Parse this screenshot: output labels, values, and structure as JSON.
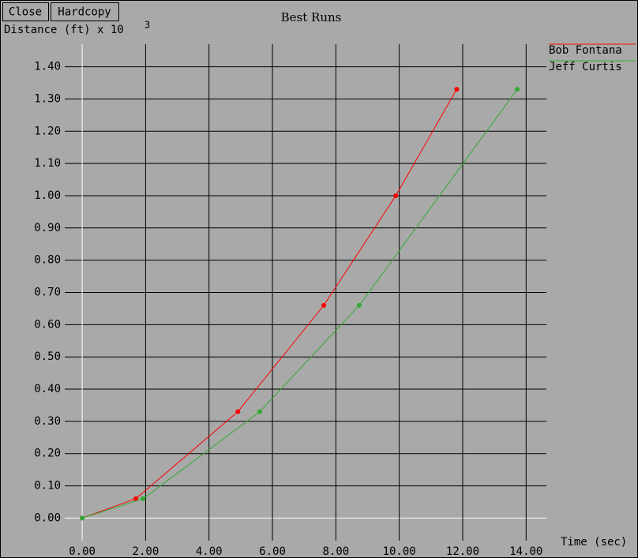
{
  "buttons": [
    "Close",
    "Hardcopy"
  ],
  "chart_data": {
    "type": "line",
    "title": "Best Runs",
    "ylabel": "Distance (ft) x 10",
    "ylabel_exponent": "3",
    "xlabel": "Time (sec)",
    "grid": true,
    "grid_color": "#000000",
    "axis_color": "#ffffff",
    "legend": "top-right",
    "xlim": [
      -0.55,
      14.64
    ],
    "ylim": [
      -0.07,
      1.47
    ],
    "xticks": [
      {
        "value": 0,
        "label": "0.00"
      },
      {
        "value": 2,
        "label": "2.00"
      },
      {
        "value": 4,
        "label": "4.00"
      },
      {
        "value": 6,
        "label": "6.00"
      },
      {
        "value": 8,
        "label": "8.00"
      },
      {
        "value": 10,
        "label": "10.00"
      },
      {
        "value": 12,
        "label": "12.00"
      },
      {
        "value": 14,
        "label": "14.00"
      }
    ],
    "yticks": [
      {
        "value": 0,
        "label": "0.00"
      },
      {
        "value": 0.1,
        "label": "0.10"
      },
      {
        "value": 0.2,
        "label": "0.20"
      },
      {
        "value": 0.3,
        "label": "0.30"
      },
      {
        "value": 0.4,
        "label": "0.40"
      },
      {
        "value": 0.5,
        "label": "0.50"
      },
      {
        "value": 0.6,
        "label": "0.60"
      },
      {
        "value": 0.7,
        "label": "0.70"
      },
      {
        "value": 0.8,
        "label": "0.80"
      },
      {
        "value": 0.9,
        "label": "0.90"
      },
      {
        "value": 1.0,
        "label": "1.00"
      },
      {
        "value": 1.1,
        "label": "1.10"
      },
      {
        "value": 1.2,
        "label": "1.20"
      },
      {
        "value": 1.3,
        "label": "1.30"
      },
      {
        "value": 1.4,
        "label": "1.40"
      }
    ],
    "series": [
      {
        "name": "Bob Fontana",
        "color": "#ff0000",
        "x": [
          0,
          1.69,
          4.91,
          7.62,
          9.89,
          11.81
        ],
        "values": [
          0,
          0.06,
          0.33,
          0.66,
          1.0,
          1.33
        ]
      },
      {
        "name": "Jeff Curtis",
        "color": "#33aa33",
        "x": [
          0,
          1.92,
          5.6,
          8.74,
          13.72
        ],
        "values": [
          0,
          0.06,
          0.33,
          0.66,
          1.33
        ]
      }
    ]
  }
}
